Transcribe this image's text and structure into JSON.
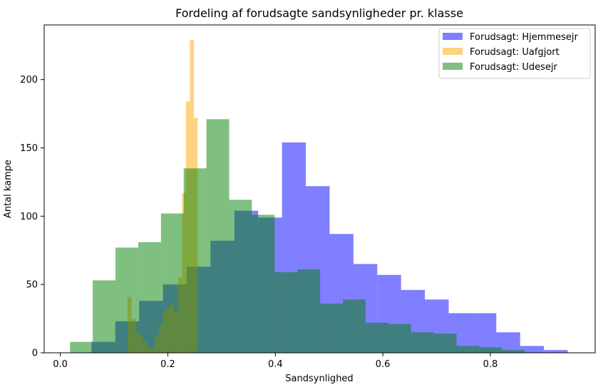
{
  "chart_data": {
    "type": "histogram",
    "title": "Fordeling af forudsagte sandsynligheder pr. klasse",
    "xlabel": "Sandsynlighed",
    "ylabel": "Antal kampe",
    "xlim": [
      -0.03,
      0.995
    ],
    "ylim": [
      0,
      240
    ],
    "xticks": [
      0.0,
      0.2,
      0.4,
      0.6,
      0.8
    ],
    "xtick_labels": [
      "0.0",
      "0.2",
      "0.4",
      "0.6",
      "0.8"
    ],
    "yticks": [
      0,
      50,
      100,
      150,
      200
    ],
    "ytick_labels": [
      "0",
      "50",
      "100",
      "150",
      "200"
    ],
    "grid": false,
    "legend_position": "top-right",
    "series": [
      {
        "name": "Forudsagt: Hjemmesejr",
        "color": "#0000ff",
        "opacity": 0.5,
        "bin_edges": [
          0.058,
          0.1023,
          0.1466,
          0.1909,
          0.2352,
          0.2795,
          0.3238,
          0.3681,
          0.4124,
          0.4567,
          0.501,
          0.5453,
          0.5896,
          0.6339,
          0.6782,
          0.7225,
          0.7668,
          0.8111,
          0.8554,
          0.8997,
          0.944
        ],
        "counts": [
          8,
          23,
          38,
          50,
          63,
          82,
          104,
          99,
          154,
          122,
          87,
          65,
          57,
          46,
          39,
          29,
          29,
          15,
          5,
          2
        ]
      },
      {
        "name": "Forudsagt: Uafgjort",
        "color": "#ffa500",
        "opacity": 0.5,
        "bin_edges": [
          0.125,
          0.1323,
          0.1395,
          0.1468,
          0.154,
          0.1613,
          0.1685,
          0.1758,
          0.183,
          0.1903,
          0.1975,
          0.2048,
          0.212,
          0.2193,
          0.2265,
          0.2338,
          0.241,
          0.2483,
          0.2555,
          0.2628,
          0.27
        ],
        "counts": [
          41,
          25,
          15,
          12,
          8,
          4,
          3,
          12,
          20,
          30,
          33,
          36,
          30,
          55,
          117,
          184,
          229,
          172,
          0,
          0
        ]
      },
      {
        "name": "Forudsagt: Udesejr",
        "color": "#008000",
        "opacity": 0.5,
        "bin_edges": [
          0.018,
          0.0603,
          0.1026,
          0.1449,
          0.1872,
          0.2295,
          0.2718,
          0.3141,
          0.3564,
          0.3987,
          0.441,
          0.4833,
          0.5256,
          0.5679,
          0.6102,
          0.6525,
          0.6948,
          0.7371,
          0.7794,
          0.8217,
          0.864
        ],
        "counts": [
          8,
          53,
          77,
          81,
          102,
          135,
          171,
          112,
          101,
          59,
          61,
          36,
          39,
          22,
          21,
          15,
          14,
          5,
          4,
          2
        ]
      }
    ]
  }
}
